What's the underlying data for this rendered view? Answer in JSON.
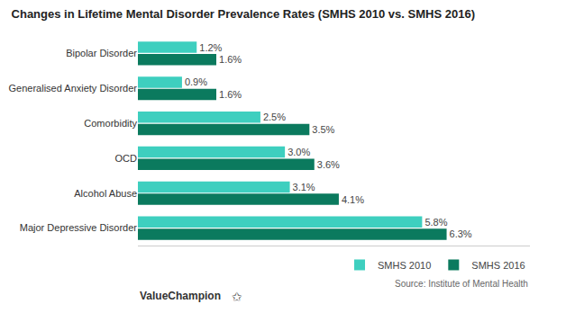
{
  "chart_data": {
    "type": "bar",
    "orientation": "horizontal",
    "title": "Changes in Lifetime Mental Disorder Prevalence Rates (SMHS 2010 vs. SMHS 2016)",
    "categories": [
      "Major Depressive Disorder",
      "Alcohol Abuse",
      "OCD",
      "Comorbidity",
      "Generalised Anxiety Disorder",
      "Bipolar Disorder"
    ],
    "series": [
      {
        "name": "SMHS 2010",
        "color": "#3ECFBF",
        "values": [
          5.8,
          3.1,
          3.0,
          2.5,
          0.9,
          1.2
        ],
        "value_labels": [
          "5.8%",
          "3.1%",
          "3.0%",
          "2.5%",
          "0.9%",
          "1.2%"
        ]
      },
      {
        "name": "SMHS 2016",
        "color": "#0B7A5E",
        "values": [
          6.3,
          4.1,
          3.6,
          3.5,
          1.6,
          1.6
        ],
        "value_labels": [
          "6.3%",
          "4.1%",
          "3.6%",
          "3.5%",
          "1.6%",
          "1.6%"
        ]
      }
    ],
    "xlim": [
      0,
      8.0
    ],
    "data_labels": true,
    "tick_labels": "y",
    "grid": false,
    "legend": "lower right",
    "annotations": [
      "Source: Institute of Mental Health",
      "ValueChampion",
      "✩"
    ]
  }
}
